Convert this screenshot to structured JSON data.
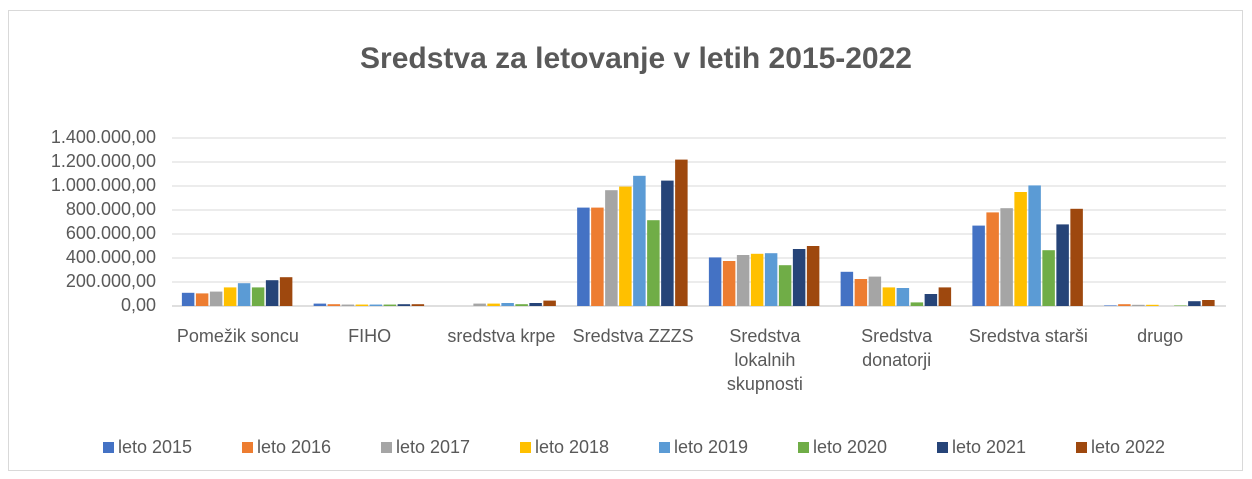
{
  "chart_data": {
    "type": "bar",
    "title": "Sredstva za letovanje v letih 2015-2022",
    "categories": [
      "Pomežik soncu",
      "FIHO",
      "sredstva krpe",
      "Sredstva ZZZS",
      "Sredstva lokalnih skupnosti",
      "Sredstva donatorji",
      "Sredstva starši",
      "drugo"
    ],
    "series": [
      {
        "name": "leto 2015",
        "color": "#4472c4",
        "values": [
          110000,
          20000,
          0,
          820000,
          405000,
          285000,
          670000,
          5000
        ]
      },
      {
        "name": "leto 2016",
        "color": "#ed7d31",
        "values": [
          105000,
          15000,
          0,
          820000,
          375000,
          225000,
          780000,
          15000
        ]
      },
      {
        "name": "leto 2017",
        "color": "#a5a5a5",
        "values": [
          120000,
          12000,
          20000,
          965000,
          425000,
          245000,
          815000,
          10000
        ]
      },
      {
        "name": "leto 2018",
        "color": "#ffc000",
        "values": [
          155000,
          12000,
          20000,
          995000,
          435000,
          155000,
          950000,
          10000
        ]
      },
      {
        "name": "leto 2019",
        "color": "#5b9bd5",
        "values": [
          190000,
          12000,
          25000,
          1085000,
          440000,
          150000,
          1005000,
          0
        ]
      },
      {
        "name": "leto 2020",
        "color": "#70ad47",
        "values": [
          155000,
          12000,
          15000,
          715000,
          340000,
          30000,
          465000,
          5000
        ]
      },
      {
        "name": "leto 2021",
        "color": "#264478",
        "values": [
          215000,
          15000,
          25000,
          1045000,
          475000,
          100000,
          680000,
          40000
        ]
      },
      {
        "name": "leto 2022",
        "color": "#9e480e",
        "values": [
          240000,
          15000,
          45000,
          1220000,
          500000,
          155000,
          810000,
          50000
        ]
      }
    ],
    "ylim": [
      0,
      1400000
    ],
    "yticks": [
      {
        "value": 0,
        "label": "0,00"
      },
      {
        "value": 200000,
        "label": "200.000,00"
      },
      {
        "value": 400000,
        "label": "400.000,00"
      },
      {
        "value": 600000,
        "label": "600.000,00"
      },
      {
        "value": 800000,
        "label": "800.000,00"
      },
      {
        "value": 1000000,
        "label": "1.000.000,00"
      },
      {
        "value": 1200000,
        "label": "1.200.000,00"
      },
      {
        "value": 1400000,
        "label": "1.400.000,00"
      }
    ],
    "grid": true,
    "legend": "bottom"
  }
}
